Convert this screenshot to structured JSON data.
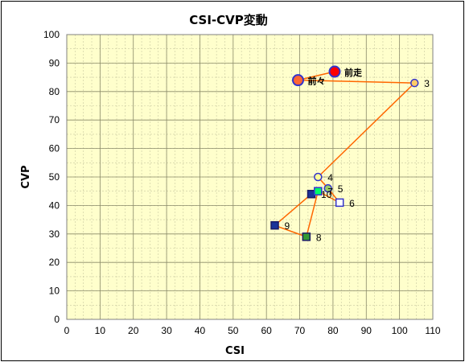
{
  "chart_data": {
    "type": "scatter",
    "title": "CSI-CVP変動",
    "xlabel": "CSI",
    "ylabel": "CVP",
    "xlim": [
      0,
      110
    ],
    "ylim": [
      0,
      100
    ],
    "xticks": [
      0,
      10,
      20,
      30,
      40,
      50,
      60,
      70,
      80,
      90,
      100,
      110
    ],
    "yticks": [
      0,
      10,
      20,
      30,
      40,
      50,
      60,
      70,
      80,
      90,
      100
    ],
    "grid": true,
    "minor_grid": true,
    "background": "#ffffcc",
    "line_color": "#ff6600",
    "points": [
      {
        "label": "前走",
        "x": 80.5,
        "y": 87,
        "marker": "circle",
        "fill": "#ff0000",
        "stroke": "#3333cc"
      },
      {
        "label": "前々",
        "x": 69.5,
        "y": 84,
        "marker": "circle",
        "fill": "#ff6633",
        "stroke": "#3333cc"
      },
      {
        "label": "3",
        "x": 104.5,
        "y": 83,
        "marker": "circle",
        "fill": "#ffcc66",
        "stroke": "#3333cc"
      },
      {
        "label": "4",
        "x": 75.5,
        "y": 50,
        "marker": "circle",
        "fill": "#ffff99",
        "stroke": "#3333cc"
      },
      {
        "label": "5",
        "x": 78.5,
        "y": 46,
        "marker": "circle",
        "fill": "#99cc66",
        "stroke": "#3333cc"
      },
      {
        "label": "6",
        "x": 82,
        "y": 41,
        "marker": "square",
        "fill": "#ffffff",
        "stroke": "#3333cc"
      },
      {
        "label": "7",
        "x": 75.5,
        "y": 45,
        "marker": "square",
        "fill": "#00ff66",
        "stroke": "#3333cc"
      },
      {
        "label": "8",
        "x": 72,
        "y": 29,
        "marker": "square",
        "fill": "#339933",
        "stroke": "#1a1a66"
      },
      {
        "label": "9",
        "x": 62.5,
        "y": 33,
        "marker": "square",
        "fill": "#1a3399",
        "stroke": "#1a1a66"
      },
      {
        "label": "10",
        "x": 73.5,
        "y": 44,
        "marker": "square",
        "fill": "#1a3399",
        "stroke": "#1a1a66"
      }
    ]
  }
}
